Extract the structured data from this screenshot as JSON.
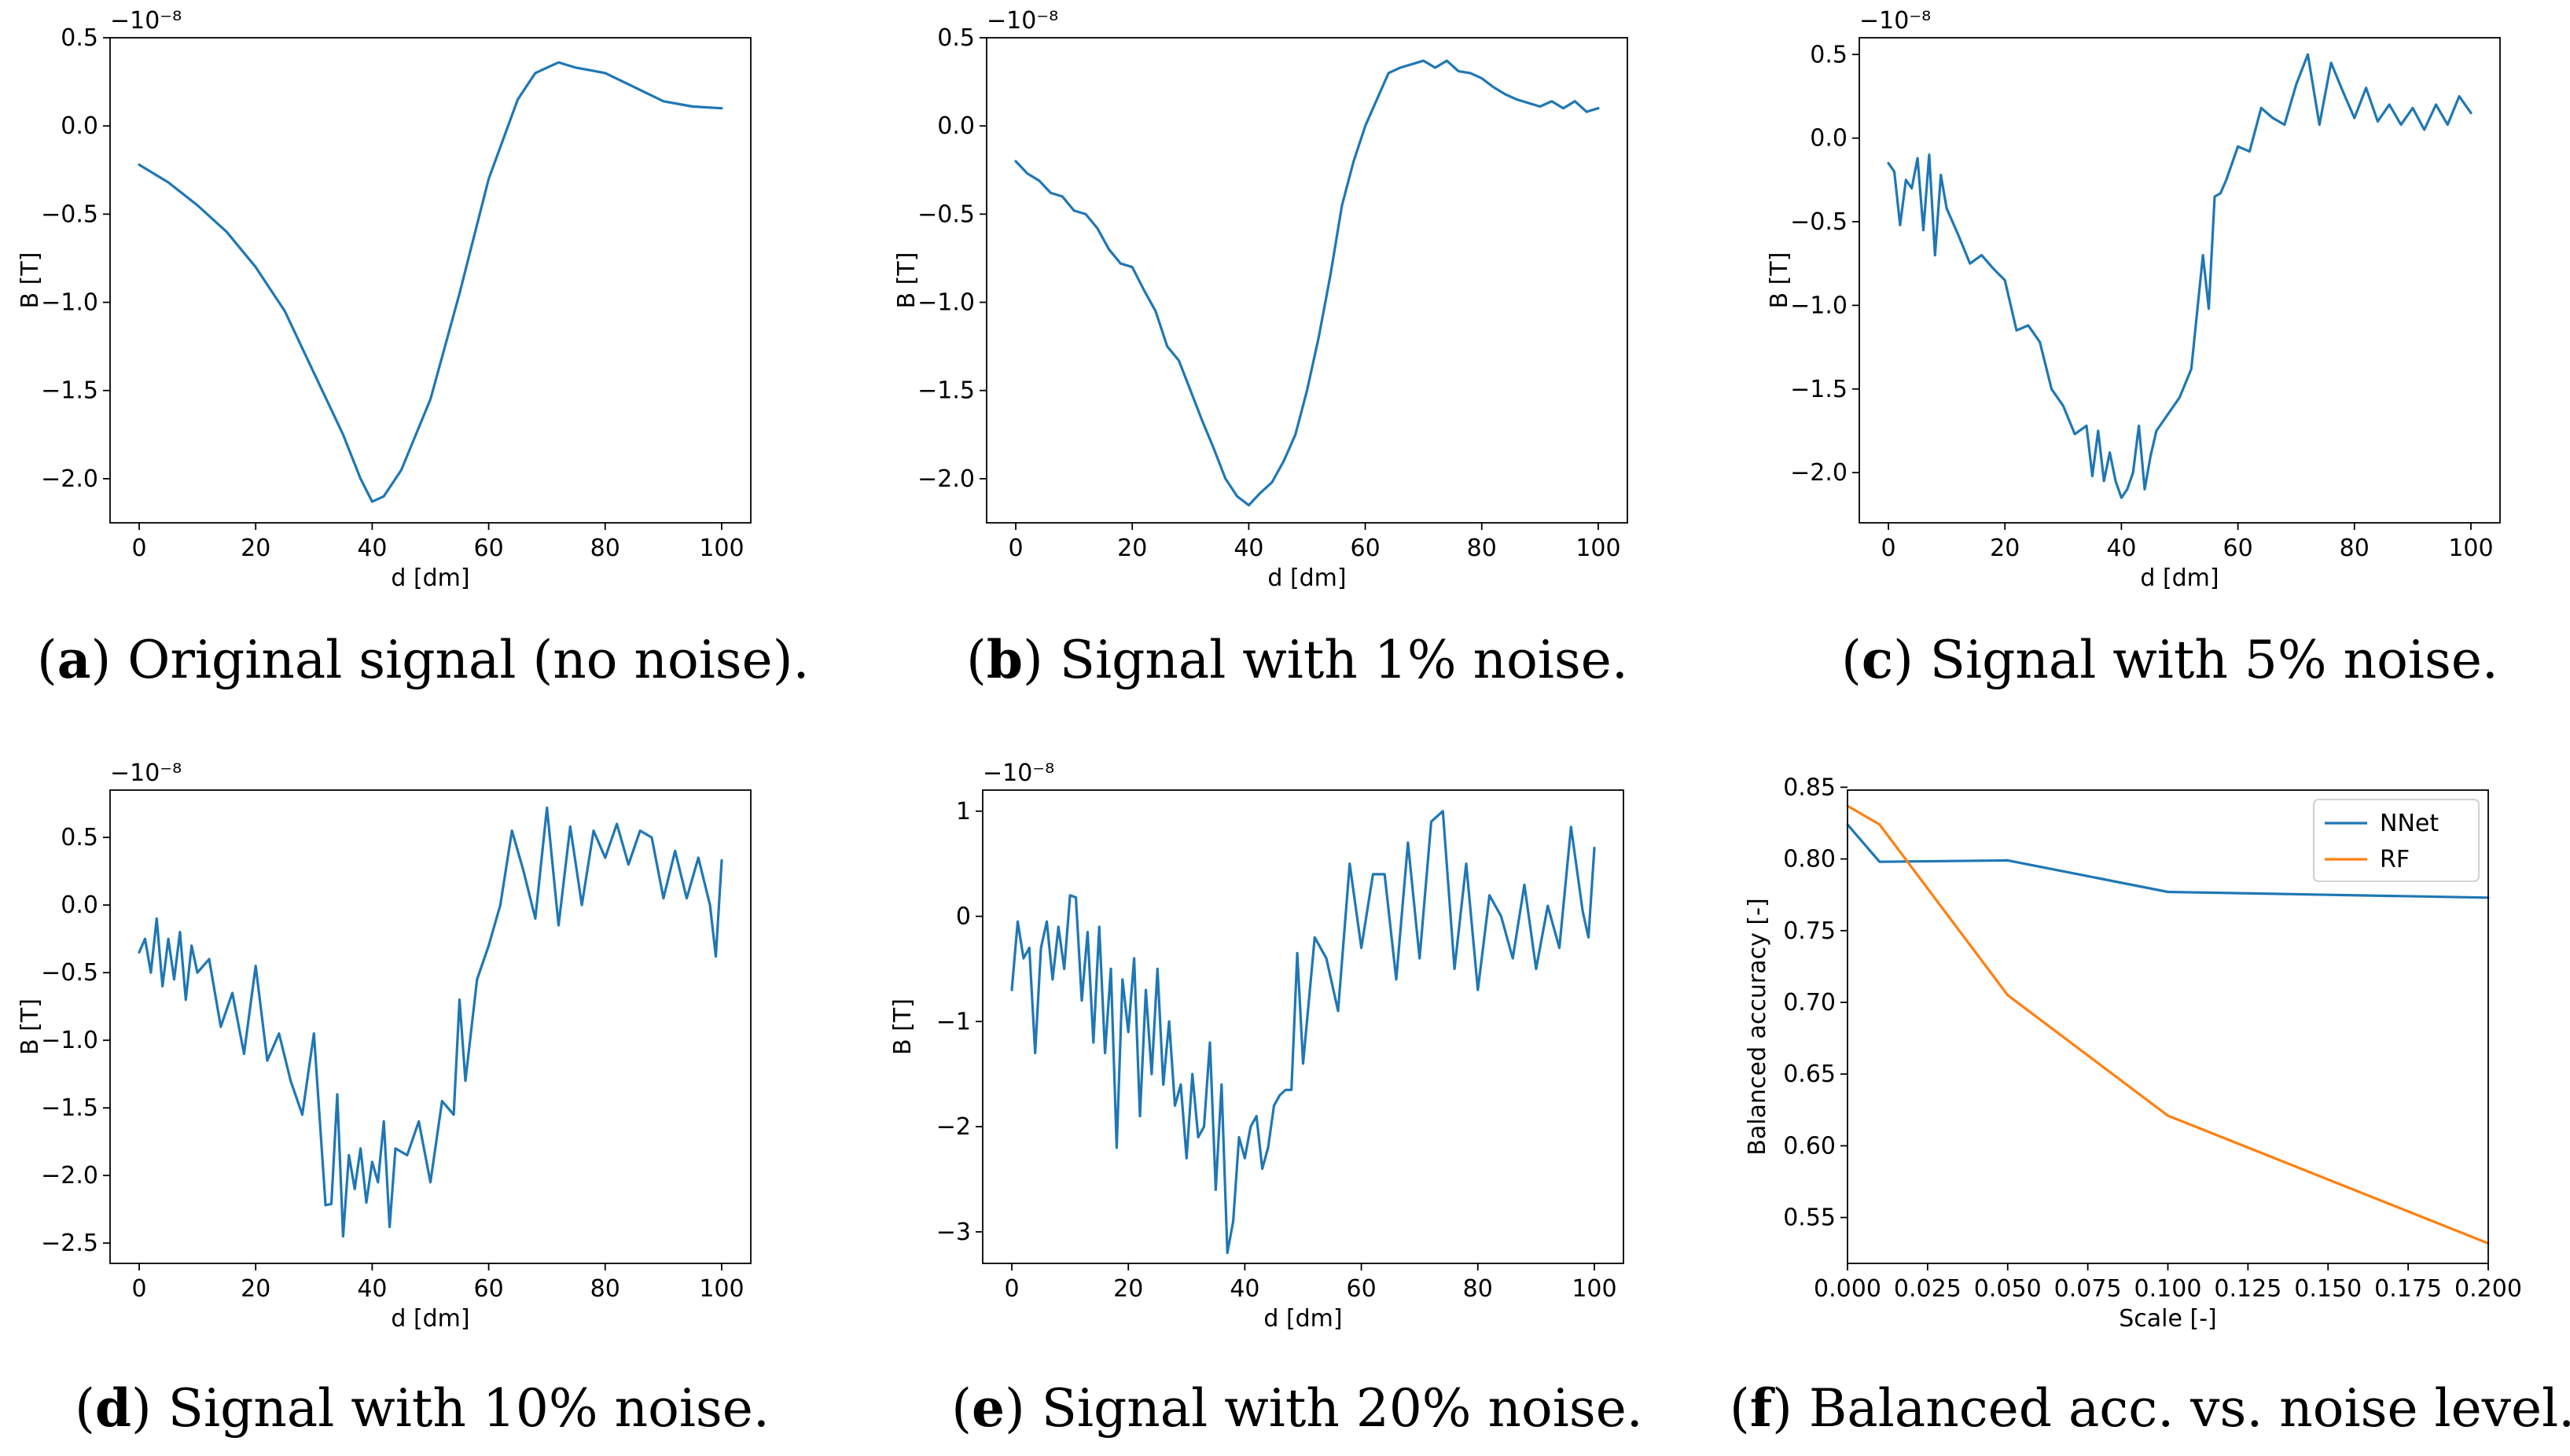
{
  "figure": {
    "panels": [
      {
        "letter": "a",
        "caption": ") Original signal (no noise)."
      },
      {
        "letter": "b",
        "caption": ") Signal with 1% noise."
      },
      {
        "letter": "c",
        "caption": ") Signal with 5% noise."
      },
      {
        "letter": "d",
        "caption": ") Signal with 10% noise."
      },
      {
        "letter": "e",
        "caption": ") Signal with 20% noise."
      },
      {
        "letter": "f",
        "caption": ") Balanced acc. vs. noise level."
      }
    ]
  },
  "chart_data": [
    {
      "type": "line",
      "title": "",
      "xlabel": "d [dm]",
      "ylabel": "B [T]",
      "offset_text": "−10⁻⁸",
      "xlim": [
        -5,
        105
      ],
      "ylim": [
        -2.25,
        0.5
      ],
      "xticks": [
        0,
        20,
        40,
        60,
        80,
        100
      ],
      "yticks": [
        -2.0,
        -1.5,
        -1.0,
        -0.5,
        0.0,
        0.5
      ],
      "ytick_labels": [
        "−2.0",
        "−1.5",
        "−1.0",
        "−0.5",
        "0.0",
        "0.5"
      ],
      "series": [
        {
          "name": "signal",
          "color": "#1f77b4",
          "x": [
            0,
            5,
            10,
            15,
            20,
            25,
            30,
            35,
            38,
            40,
            42,
            45,
            50,
            55,
            60,
            65,
            68,
            70,
            72,
            75,
            80,
            85,
            90,
            95,
            100
          ],
          "y": [
            -0.22,
            -0.32,
            -0.45,
            -0.6,
            -0.8,
            -1.05,
            -1.4,
            -1.75,
            -2.0,
            -2.13,
            -2.1,
            -1.95,
            -1.55,
            -0.95,
            -0.3,
            0.15,
            0.3,
            0.33,
            0.36,
            0.33,
            0.3,
            0.22,
            0.14,
            0.11,
            0.1
          ]
        }
      ]
    },
    {
      "type": "line",
      "title": "",
      "xlabel": "d [dm]",
      "ylabel": "B [T]",
      "offset_text": "−10⁻⁸",
      "xlim": [
        -5,
        105
      ],
      "ylim": [
        -2.25,
        0.5
      ],
      "xticks": [
        0,
        20,
        40,
        60,
        80,
        100
      ],
      "yticks": [
        -2.0,
        -1.5,
        -1.0,
        -0.5,
        0.0,
        0.5
      ],
      "ytick_labels": [
        "−2.0",
        "−1.5",
        "−1.0",
        "−0.5",
        "0.0",
        "0.5"
      ],
      "series": [
        {
          "name": "signal",
          "color": "#1f77b4",
          "x": [
            0,
            2,
            4,
            6,
            8,
            10,
            12,
            14,
            16,
            18,
            20,
            22,
            24,
            26,
            28,
            30,
            32,
            34,
            36,
            38,
            40,
            42,
            44,
            46,
            48,
            50,
            52,
            54,
            56,
            58,
            60,
            62,
            64,
            66,
            68,
            70,
            72,
            74,
            76,
            78,
            80,
            82,
            84,
            86,
            88,
            90,
            92,
            94,
            96,
            98,
            100
          ],
          "y": [
            -0.2,
            -0.27,
            -0.31,
            -0.38,
            -0.4,
            -0.48,
            -0.5,
            -0.58,
            -0.7,
            -0.78,
            -0.8,
            -0.93,
            -1.05,
            -1.25,
            -1.33,
            -1.5,
            -1.67,
            -1.83,
            -2.0,
            -2.1,
            -2.15,
            -2.08,
            -2.02,
            -1.9,
            -1.75,
            -1.5,
            -1.2,
            -0.85,
            -0.45,
            -0.2,
            0.0,
            0.15,
            0.3,
            0.33,
            0.35,
            0.37,
            0.33,
            0.37,
            0.31,
            0.3,
            0.27,
            0.22,
            0.18,
            0.15,
            0.13,
            0.11,
            0.14,
            0.1,
            0.14,
            0.08,
            0.1
          ]
        }
      ]
    },
    {
      "type": "line",
      "title": "",
      "xlabel": "d [dm]",
      "ylabel": "B [T]",
      "offset_text": "−10⁻⁸",
      "xlim": [
        -5,
        105
      ],
      "ylim": [
        -2.3,
        0.6
      ],
      "xticks": [
        0,
        20,
        40,
        60,
        80,
        100
      ],
      "yticks": [
        -2.0,
        -1.5,
        -1.0,
        -0.5,
        0.0,
        0.5
      ],
      "ytick_labels": [
        "−2.0",
        "−1.5",
        "−1.0",
        "−0.5",
        "0.0",
        "0.5"
      ],
      "series": [
        {
          "name": "signal",
          "color": "#1f77b4",
          "x": [
            0,
            1,
            2,
            3,
            4,
            5,
            6,
            7,
            8,
            9,
            10,
            12,
            14,
            16,
            18,
            20,
            22,
            24,
            26,
            28,
            30,
            32,
            34,
            35,
            36,
            37,
            38,
            39,
            40,
            41,
            42,
            43,
            44,
            45,
            46,
            48,
            50,
            52,
            54,
            55,
            56,
            57,
            58,
            60,
            62,
            64,
            66,
            68,
            70,
            72,
            74,
            76,
            78,
            80,
            82,
            84,
            86,
            88,
            90,
            92,
            94,
            96,
            98,
            100
          ],
          "y": [
            -0.15,
            -0.2,
            -0.52,
            -0.25,
            -0.3,
            -0.12,
            -0.55,
            -0.1,
            -0.7,
            -0.22,
            -0.42,
            -0.58,
            -0.75,
            -0.7,
            -0.78,
            -0.85,
            -1.15,
            -1.12,
            -1.22,
            -1.5,
            -1.6,
            -1.77,
            -1.72,
            -2.02,
            -1.75,
            -2.05,
            -1.88,
            -2.05,
            -2.15,
            -2.1,
            -2.0,
            -1.72,
            -2.1,
            -1.9,
            -1.75,
            -1.65,
            -1.55,
            -1.38,
            -0.7,
            -1.02,
            -0.35,
            -0.33,
            -0.25,
            -0.05,
            -0.08,
            0.18,
            0.12,
            0.08,
            0.32,
            0.5,
            0.08,
            0.45,
            0.28,
            0.12,
            0.3,
            0.1,
            0.2,
            0.08,
            0.18,
            0.05,
            0.2,
            0.08,
            0.25,
            0.15
          ]
        }
      ]
    },
    {
      "type": "line",
      "title": "",
      "xlabel": "d [dm]",
      "ylabel": "B [T]",
      "offset_text": "−10⁻⁸",
      "xlim": [
        -5,
        105
      ],
      "ylim": [
        -2.65,
        0.85
      ],
      "xticks": [
        0,
        20,
        40,
        60,
        80,
        100
      ],
      "yticks": [
        -2.5,
        -2.0,
        -1.5,
        -1.0,
        -0.5,
        0.0,
        0.5
      ],
      "ytick_labels": [
        "−2.5",
        "−2.0",
        "−1.5",
        "−1.0",
        "−0.5",
        "0.0",
        "0.5"
      ],
      "series": [
        {
          "name": "signal",
          "color": "#1f77b4",
          "x": [
            0,
            1,
            2,
            3,
            4,
            5,
            6,
            7,
            8,
            9,
            10,
            12,
            14,
            16,
            18,
            20,
            22,
            24,
            26,
            28,
            30,
            32,
            33,
            34,
            35,
            36,
            37,
            38,
            39,
            40,
            41,
            42,
            43,
            44,
            46,
            48,
            50,
            52,
            54,
            55,
            56,
            58,
            60,
            62,
            64,
            66,
            68,
            70,
            72,
            74,
            76,
            78,
            80,
            82,
            84,
            86,
            88,
            90,
            92,
            94,
            96,
            98,
            99,
            100
          ],
          "y": [
            -0.35,
            -0.25,
            -0.5,
            -0.1,
            -0.6,
            -0.25,
            -0.55,
            -0.2,
            -0.7,
            -0.3,
            -0.5,
            -0.4,
            -0.9,
            -0.65,
            -1.1,
            -0.45,
            -1.15,
            -0.95,
            -1.3,
            -1.55,
            -0.95,
            -2.22,
            -2.21,
            -1.4,
            -2.45,
            -1.85,
            -2.1,
            -1.8,
            -2.2,
            -1.9,
            -2.05,
            -1.6,
            -2.38,
            -1.8,
            -1.85,
            -1.6,
            -2.05,
            -1.45,
            -1.55,
            -0.7,
            -1.3,
            -0.55,
            -0.3,
            0.0,
            0.55,
            0.25,
            -0.1,
            0.72,
            -0.15,
            0.58,
            0.0,
            0.55,
            0.35,
            0.6,
            0.3,
            0.55,
            0.5,
            0.05,
            0.4,
            0.05,
            0.35,
            0.0,
            -0.38,
            0.33
          ]
        }
      ]
    },
    {
      "type": "line",
      "title": "",
      "xlabel": "d [dm]",
      "ylabel": "B [T]",
      "offset_text": "−10⁻⁸",
      "xlim": [
        -5,
        105
      ],
      "ylim": [
        -3.3,
        1.2
      ],
      "xticks": [
        0,
        20,
        40,
        60,
        80,
        100
      ],
      "yticks": [
        -3,
        -2,
        -1,
        0,
        1
      ],
      "ytick_labels": [
        "−3",
        "−2",
        "−1",
        "0",
        "1"
      ],
      "series": [
        {
          "name": "signal",
          "color": "#1f77b4",
          "x": [
            0,
            1,
            2,
            3,
            4,
            5,
            6,
            7,
            8,
            9,
            10,
            11,
            12,
            13,
            14,
            15,
            16,
            17,
            18,
            19,
            20,
            21,
            22,
            23,
            24,
            25,
            26,
            27,
            28,
            29,
            30,
            31,
            32,
            33,
            34,
            35,
            36,
            37,
            38,
            39,
            40,
            41,
            42,
            43,
            44,
            45,
            46,
            47,
            48,
            49,
            50,
            52,
            54,
            56,
            58,
            60,
            62,
            64,
            66,
            68,
            70,
            72,
            74,
            76,
            78,
            80,
            82,
            84,
            86,
            88,
            90,
            92,
            94,
            96,
            98,
            99,
            100
          ],
          "y": [
            -0.7,
            -0.05,
            -0.4,
            -0.3,
            -1.3,
            -0.3,
            -0.05,
            -0.6,
            -0.1,
            -0.5,
            0.2,
            0.18,
            -0.8,
            -0.15,
            -1.2,
            -0.1,
            -1.3,
            -0.5,
            -2.2,
            -0.6,
            -1.1,
            -0.4,
            -1.9,
            -0.7,
            -1.5,
            -0.5,
            -1.6,
            -1.0,
            -1.8,
            -1.6,
            -2.3,
            -1.5,
            -2.1,
            -2.0,
            -1.2,
            -2.6,
            -1.6,
            -3.2,
            -2.9,
            -2.1,
            -2.3,
            -2.0,
            -1.9,
            -2.4,
            -2.2,
            -1.8,
            -1.7,
            -1.65,
            -1.65,
            -0.35,
            -1.4,
            -0.2,
            -0.4,
            -0.9,
            0.5,
            -0.3,
            0.4,
            0.4,
            -0.6,
            0.7,
            -0.4,
            0.9,
            1.0,
            -0.5,
            0.5,
            -0.7,
            0.2,
            0.0,
            -0.4,
            0.3,
            -0.5,
            0.1,
            -0.3,
            0.85,
            0.05,
            -0.2,
            0.65
          ]
        }
      ]
    },
    {
      "type": "line",
      "title": "",
      "xlabel": "Scale [-]",
      "ylabel": "Balanced accuracy [-]",
      "xlim": [
        0.0,
        0.2
      ],
      "ylim": [
        0.518,
        0.848
      ],
      "xticks": [
        0.0,
        0.025,
        0.05,
        0.075,
        0.1,
        0.125,
        0.15,
        0.175,
        0.2
      ],
      "xtick_labels": [
        "0.000",
        "0.025",
        "0.050",
        "0.075",
        "0.100",
        "0.125",
        "0.150",
        "0.175",
        "0.200"
      ],
      "yticks": [
        0.55,
        0.6,
        0.65,
        0.7,
        0.75,
        0.8,
        0.85
      ],
      "ytick_labels": [
        "0.55",
        "0.60",
        "0.65",
        "0.70",
        "0.75",
        "0.80",
        "0.85"
      ],
      "legend_position": "top-right",
      "series": [
        {
          "name": "NNet",
          "color": "#1f77b4",
          "x": [
            0.0,
            0.01,
            0.05,
            0.1,
            0.2
          ],
          "y": [
            0.824,
            0.798,
            0.799,
            0.777,
            0.773
          ]
        },
        {
          "name": "RF",
          "color": "#ff7f0e",
          "x": [
            0.0,
            0.01,
            0.05,
            0.1,
            0.2
          ],
          "y": [
            0.837,
            0.824,
            0.705,
            0.621,
            0.532
          ]
        }
      ]
    }
  ]
}
